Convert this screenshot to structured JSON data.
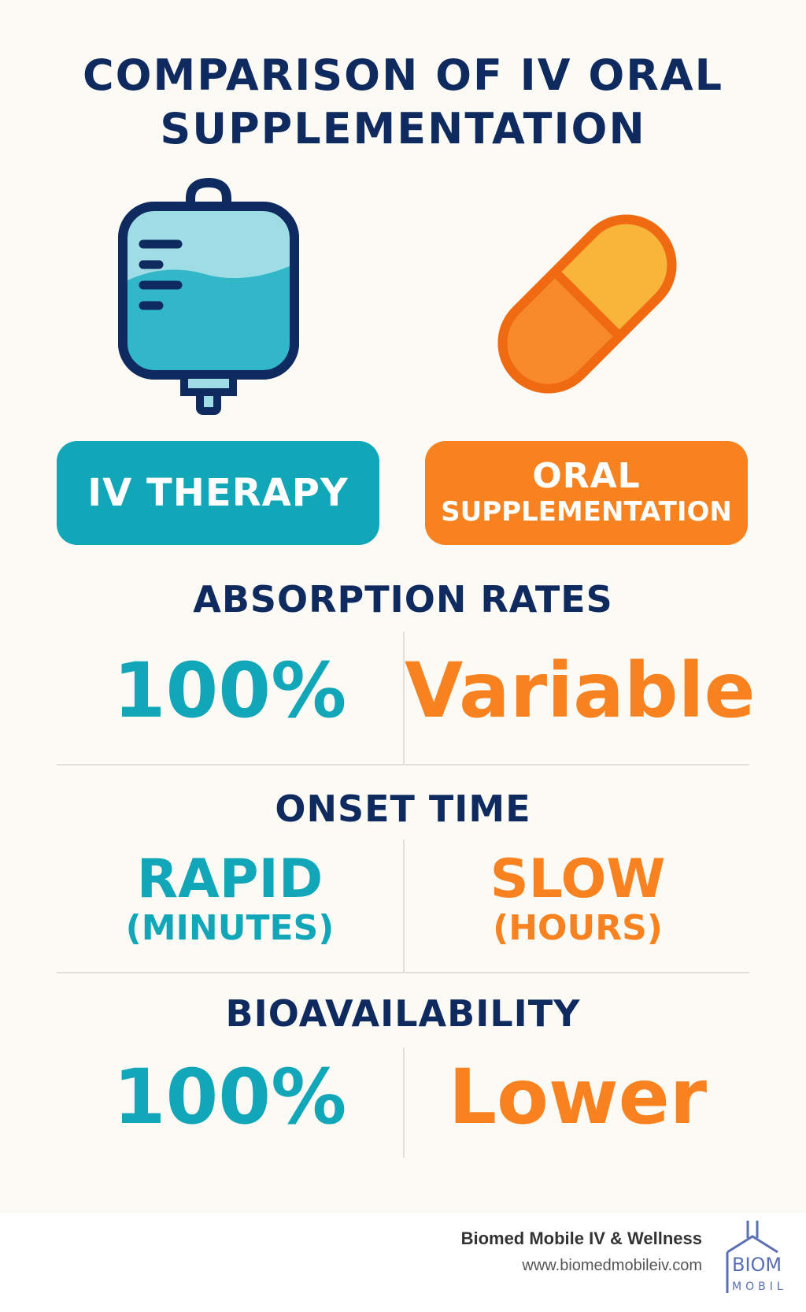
{
  "title": {
    "line1": "COMPARISON OF IV ORAL",
    "line2": "SUPPLEMENTATION"
  },
  "icons": {
    "left": "iv-bag-icon",
    "right": "capsule-pill-icon"
  },
  "colors": {
    "navy": "#0E2A5E",
    "teal": "#12A7B8",
    "orange": "#F7821F",
    "background": "#FCFAF5"
  },
  "badges": {
    "iv": "IV THERAPY",
    "oral_line1": "ORAL",
    "oral_line2": "SUPPLEMENTATION"
  },
  "sections": {
    "absorption": {
      "heading": "ABSORPTION RATES",
      "iv": "100%",
      "oral": "Variable"
    },
    "onset": {
      "heading": "ONSET TIME",
      "iv_main": "RAPID",
      "iv_sub": "(MINUTES)",
      "oral_main": "SLOW",
      "oral_sub": "(HOURS)"
    },
    "bioavailability": {
      "heading": "BIOAVAILABILITY",
      "iv": "100%",
      "oral": "Lower"
    }
  },
  "footer": {
    "brand": "Biomed Mobile IV & Wellness",
    "url": "www.biomedmobileiv.com",
    "logo_text_top": "BIOM",
    "logo_text_bottom": "MOBIL"
  }
}
